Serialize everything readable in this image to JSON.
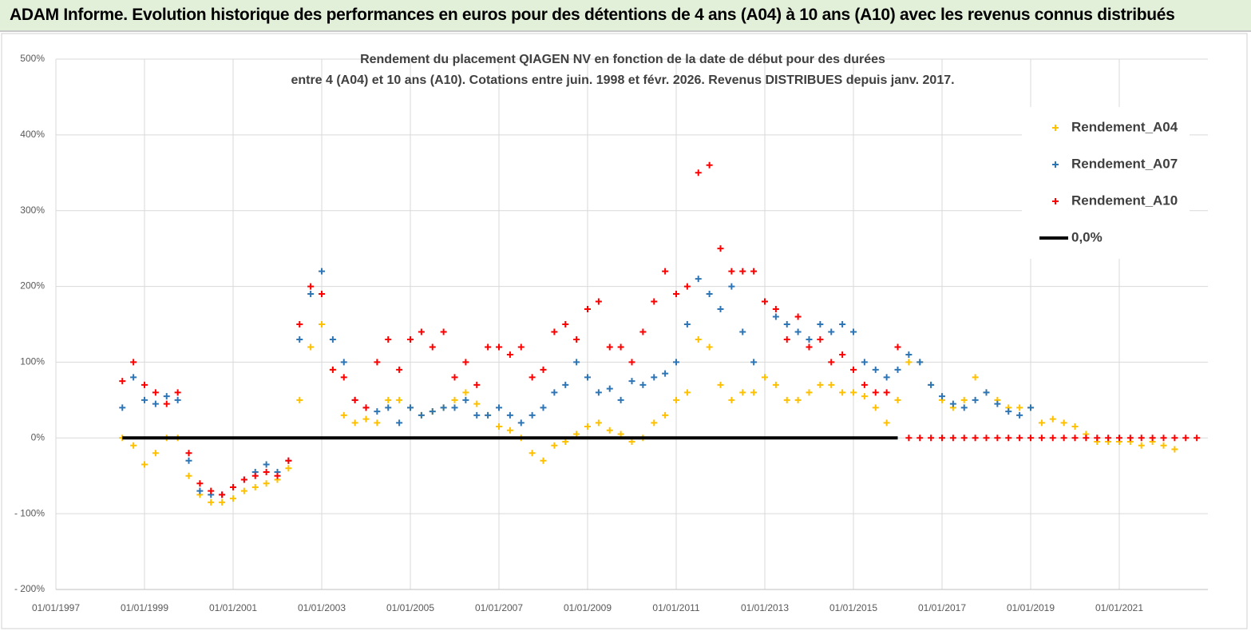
{
  "header": {
    "title": "ADAM Informe. Evolution historique des performances en euros pour des détentions de 4 ans (A04) à 10 ans (A10) avec les revenus connus distribués"
  },
  "chart_data": {
    "type": "scatter",
    "title": [
      "Rendement du placement QIAGEN NV en fonction de la date de début pour des durées",
      "entre 4 (A04) et 10 ans (A10). Cotations entre juin. 1998 et févr. 2026. Revenus DISTRIBUES depuis janv. 2017."
    ],
    "x": [
      "01/07/1998",
      "01/10/1998",
      "01/01/1999",
      "01/04/1999",
      "01/07/1999",
      "01/10/1999",
      "01/01/2000",
      "01/04/2000",
      "01/07/2000",
      "01/10/2000",
      "01/01/2001",
      "01/04/2001",
      "01/07/2001",
      "01/10/2001",
      "01/01/2002",
      "01/04/2002",
      "01/07/2002",
      "01/10/2002",
      "01/01/2003",
      "01/04/2003",
      "01/07/2003",
      "01/10/2003",
      "01/01/2004",
      "01/04/2004",
      "01/07/2004",
      "01/10/2004",
      "01/01/2005",
      "01/04/2005",
      "01/07/2005",
      "01/10/2005",
      "01/01/2006",
      "01/04/2006",
      "01/07/2006",
      "01/10/2006",
      "01/01/2007",
      "01/04/2007",
      "01/07/2007",
      "01/10/2007",
      "01/01/2008",
      "01/04/2008",
      "01/07/2008",
      "01/10/2008",
      "01/01/2009",
      "01/04/2009",
      "01/07/2009",
      "01/10/2009",
      "01/01/2010",
      "01/04/2010",
      "01/07/2010",
      "01/10/2010",
      "01/01/2011",
      "01/04/2011",
      "01/07/2011",
      "01/10/2011",
      "01/01/2012",
      "01/04/2012",
      "01/07/2012",
      "01/10/2012",
      "01/01/2013",
      "01/04/2013",
      "01/07/2013",
      "01/10/2013",
      "01/01/2014",
      "01/04/2014",
      "01/07/2014",
      "01/10/2014",
      "01/01/2015",
      "01/04/2015",
      "01/07/2015",
      "01/10/2015",
      "01/01/2016",
      "01/04/2016",
      "01/07/2016",
      "01/10/2016",
      "01/01/2017",
      "01/04/2017",
      "01/07/2017",
      "01/10/2017",
      "01/01/2018",
      "01/04/2018",
      "01/07/2018",
      "01/10/2018",
      "01/01/2019",
      "01/04/2019",
      "01/07/2019",
      "01/10/2019",
      "01/01/2020",
      "01/04/2020",
      "01/07/2020",
      "01/10/2020",
      "01/01/2021",
      "01/04/2021",
      "01/07/2021",
      "01/10/2021",
      "01/01/2022",
      "01/04/2022",
      "01/07/2022",
      "01/10/2022"
    ],
    "series": [
      {
        "name": "Rendement_A04",
        "color": "#ffc000",
        "mode": "markers",
        "values": [
          0,
          -10,
          -35,
          -20,
          0,
          0,
          -50,
          -75,
          -85,
          -85,
          -80,
          -70,
          -65,
          -60,
          -55,
          -40,
          50,
          120,
          150,
          90,
          30,
          20,
          25,
          20,
          50,
          50,
          40,
          30,
          35,
          40,
          50,
          60,
          45,
          30,
          15,
          10,
          0,
          -20,
          -30,
          -10,
          -5,
          5,
          15,
          20,
          10,
          5,
          -5,
          0,
          20,
          30,
          50,
          60,
          130,
          120,
          70,
          50,
          60,
          60,
          80,
          70,
          50,
          50,
          60,
          70,
          70,
          60,
          60,
          55,
          40,
          20,
          50,
          100,
          100,
          70,
          50,
          40,
          50,
          80,
          60,
          50,
          40,
          40,
          40,
          20,
          25,
          20,
          15,
          5,
          -5,
          -5,
          -5,
          -5,
          -10,
          -5,
          -10,
          -15,
          null,
          null
        ]
      },
      {
        "name": "Rendement_A07",
        "color": "#2e75b6",
        "mode": "markers",
        "values": [
          40,
          80,
          50,
          45,
          55,
          50,
          -30,
          -70,
          -75,
          -75,
          -65,
          -55,
          -45,
          -35,
          -45,
          -30,
          130,
          190,
          220,
          130,
          100,
          50,
          40,
          35,
          40,
          20,
          40,
          30,
          35,
          40,
          40,
          50,
          30,
          30,
          40,
          30,
          20,
          30,
          40,
          60,
          70,
          100,
          80,
          60,
          65,
          50,
          75,
          70,
          80,
          85,
          100,
          150,
          210,
          190,
          170,
          200,
          140,
          100,
          180,
          160,
          150,
          140,
          130,
          150,
          140,
          150,
          140,
          100,
          90,
          80,
          90,
          110,
          100,
          70,
          55,
          45,
          40,
          50,
          60,
          45,
          35,
          30,
          40,
          null,
          null,
          null,
          null,
          null,
          null,
          null,
          null,
          null,
          null,
          null,
          null,
          null,
          null,
          null
        ]
      },
      {
        "name": "Rendement_A10",
        "color": "#ff0000",
        "mode": "markers",
        "values": [
          75,
          100,
          70,
          60,
          45,
          60,
          -20,
          -60,
          -70,
          -75,
          -65,
          -55,
          -50,
          -45,
          -50,
          -30,
          150,
          200,
          190,
          90,
          80,
          50,
          40,
          100,
          130,
          90,
          130,
          140,
          120,
          140,
          80,
          100,
          70,
          120,
          120,
          110,
          120,
          80,
          90,
          140,
          150,
          130,
          170,
          180,
          120,
          120,
          100,
          140,
          180,
          220,
          190,
          200,
          350,
          360,
          250,
          220,
          220,
          220,
          180,
          170,
          130,
          160,
          120,
          130,
          100,
          110,
          90,
          70,
          60,
          60,
          120,
          0,
          0,
          0,
          0,
          0,
          0,
          0,
          0,
          0,
          0,
          0,
          0,
          0,
          0,
          0,
          0,
          0,
          0,
          0,
          0,
          0,
          0,
          0,
          0,
          0,
          0,
          0
        ]
      },
      {
        "name": "0,0%",
        "color": "#000000",
        "mode": "line",
        "values": [
          0,
          0,
          0,
          0,
          0,
          0,
          0,
          0,
          0,
          0,
          0,
          0,
          0,
          0,
          0,
          0,
          0,
          0,
          0,
          0,
          0,
          0,
          0,
          0,
          0,
          0,
          0,
          0,
          0,
          0,
          0,
          0,
          0,
          0,
          0,
          0,
          0,
          0,
          0,
          0,
          0,
          0,
          0,
          0,
          0,
          0,
          0,
          0,
          0,
          0,
          0,
          0,
          0,
          0,
          0,
          0,
          0,
          0,
          0,
          0,
          0,
          0,
          0,
          0,
          0,
          0,
          0,
          0,
          0,
          0,
          0,
          null,
          null,
          null,
          null,
          null,
          null,
          null,
          null,
          null,
          null,
          null,
          null,
          null,
          null,
          null,
          null,
          null,
          null,
          null,
          null,
          null,
          null,
          null,
          null,
          null,
          null,
          null
        ]
      }
    ],
    "xlim": [
      "01/01/1997",
      "01/01/2023"
    ],
    "xticks": [
      "01/01/1997",
      "01/01/1999",
      "01/01/2001",
      "01/01/2003",
      "01/01/2005",
      "01/01/2007",
      "01/01/2009",
      "01/01/2011",
      "01/01/2013",
      "01/01/2015",
      "01/01/2017",
      "01/01/2019",
      "01/01/2021"
    ],
    "ylim": [
      -200,
      500
    ],
    "yticks": [
      {
        "value": -200,
        "label": "- 200%"
      },
      {
        "value": -100,
        "label": "- 100%"
      },
      {
        "value": 0,
        "label": "0%"
      },
      {
        "value": 100,
        "label": "100%"
      },
      {
        "value": 200,
        "label": "200%"
      },
      {
        "value": 300,
        "label": "300%"
      },
      {
        "value": 400,
        "label": "400%"
      },
      {
        "value": 500,
        "label": "500%"
      }
    ],
    "grid": true,
    "legend": "right"
  }
}
